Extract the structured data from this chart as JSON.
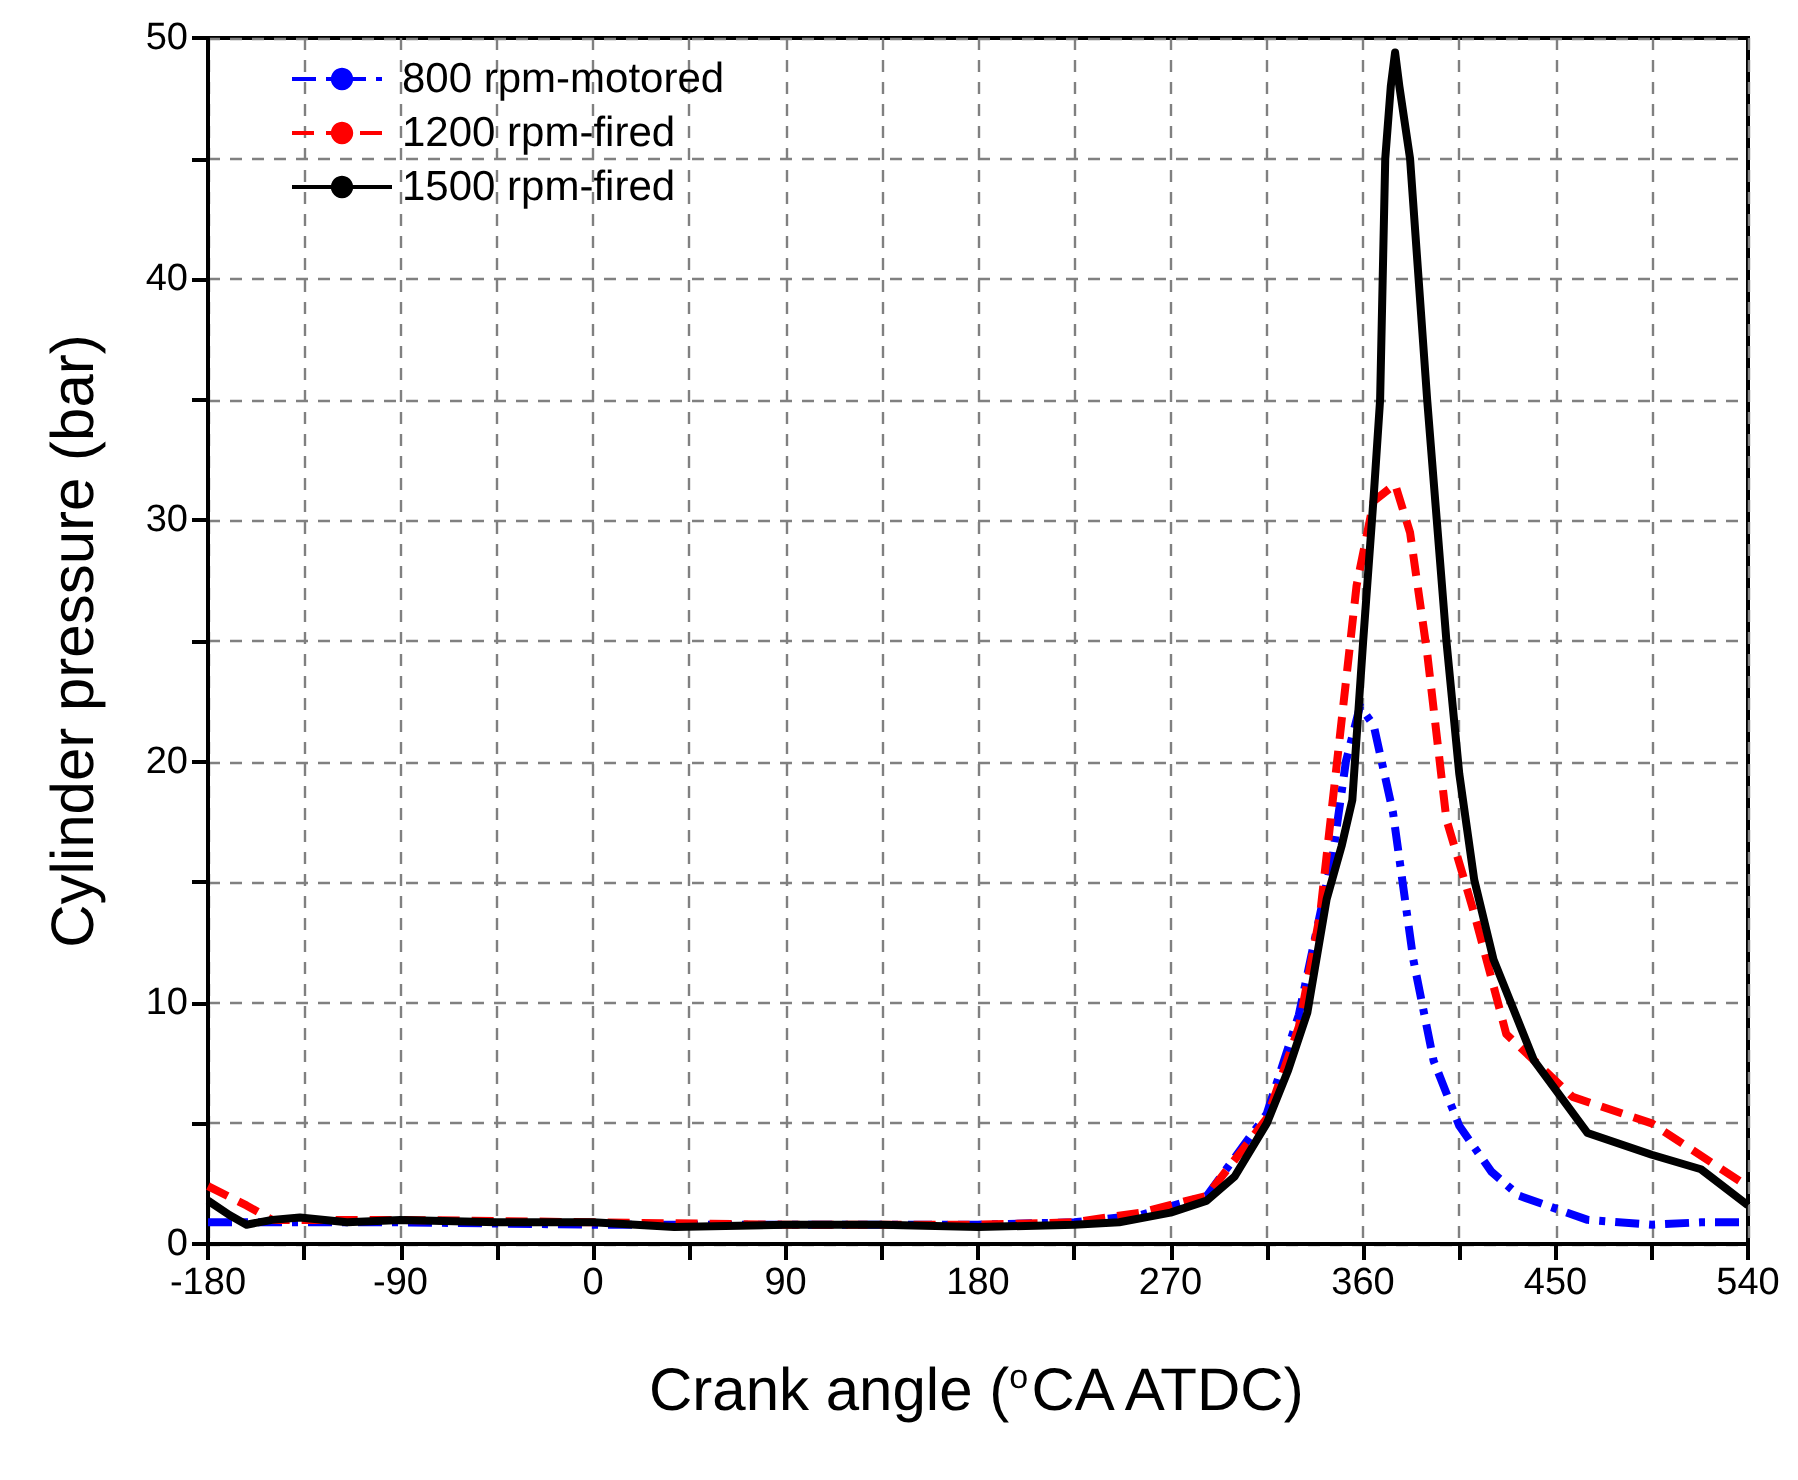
{
  "chart_data": {
    "type": "line",
    "xlabel": "Crank angle ($^{o}$CA ATDC)",
    "ylabel": "Cylinder pressure (bar)",
    "xlim": [
      -180,
      540
    ],
    "ylim": [
      0,
      50
    ],
    "xticks": [
      -180,
      {
        "value": -135,
        "label": null
      },
      -90,
      {
        "value": -45,
        "label": null
      },
      0,
      {
        "value": 45,
        "label": null
      },
      90,
      {
        "value": 135,
        "label": null
      },
      180,
      {
        "value": 225,
        "label": null
      },
      270,
      {
        "value": 315,
        "label": null
      },
      360,
      {
        "value": 405,
        "label": null
      },
      450,
      {
        "value": 495,
        "label": null
      },
      540
    ],
    "yticks": [
      0,
      {
        "value": 5,
        "label": null
      },
      10,
      {
        "value": 15,
        "label": null
      },
      20,
      {
        "value": 25,
        "label": null
      },
      30,
      {
        "value": 35,
        "label": null
      },
      40,
      {
        "value": 45,
        "label": null
      },
      50
    ],
    "grid": true,
    "legend": "top left",
    "marker": "none",
    "series": [
      {
        "name": "800 rpm-motored",
        "color": "#0000ff",
        "line_style": "dashdot",
        "x": [
          -180,
          -90,
          0,
          90,
          180,
          225,
          256,
          287,
          315,
          330,
          340,
          346,
          352,
          358.6,
          365,
          374,
          383.5,
          393,
          405,
          420,
          433,
          465,
          495,
          518,
          540
        ],
        "values": [
          0.9,
          0.9,
          0.8,
          0.8,
          0.8,
          0.9,
          1.2,
          2.0,
          5.4,
          9.5,
          13.7,
          16.2,
          20,
          22.3,
          21.5,
          17.9,
          11.8,
          7.6,
          4.9,
          3.0,
          2.0,
          1.0,
          0.8,
          0.9,
          0.9
        ]
      },
      {
        "name": "1200 rpm-fired",
        "color": "#ff0000",
        "line_style": "dashed",
        "x": [
          -180,
          -162,
          -150,
          -90,
          0,
          90,
          180,
          225,
          256,
          287,
          315,
          330,
          340,
          348,
          357,
          365,
          375,
          382,
          390,
          399,
          412,
          427,
          458,
          495,
          538,
          540
        ],
        "values": [
          2.4,
          1.6,
          1.0,
          1.0,
          0.9,
          0.8,
          0.8,
          0.9,
          1.3,
          2.0,
          5.2,
          9,
          13.7,
          20.1,
          27.3,
          30.8,
          31.5,
          29.5,
          24.5,
          17.6,
          13.7,
          8.7,
          6.1,
          5.0,
          2.5,
          2.4
        ]
      },
      {
        "name": "1500 rpm-fired",
        "color": "#000000",
        "line_style": "solid",
        "x": [
          -180,
          -170,
          -162,
          -150,
          -137,
          -115,
          -90,
          -45,
          0,
          38,
          90,
          135,
          180,
          225,
          246,
          270,
          287,
          300,
          315,
          325,
          334,
          343,
          350,
          355,
          360,
          365,
          368,
          370.4,
          373,
          375,
          377,
          382,
          390,
          399,
          405,
          412,
          421,
          440,
          465,
          495,
          518,
          540
        ],
        "values": [
          1.8,
          1.2,
          0.8,
          1.0,
          1.1,
          0.9,
          1.0,
          0.9,
          0.9,
          0.7,
          0.8,
          0.8,
          0.7,
          0.8,
          0.9,
          1.3,
          1.8,
          2.8,
          5.0,
          7.2,
          9.6,
          14.3,
          16.5,
          18.4,
          24.9,
          31,
          35,
          45,
          48,
          49.4,
          48,
          45,
          35,
          25,
          19.5,
          15.1,
          11.8,
          7.6,
          4.6,
          3.7,
          3.1,
          1.6
        ]
      }
    ]
  }
}
